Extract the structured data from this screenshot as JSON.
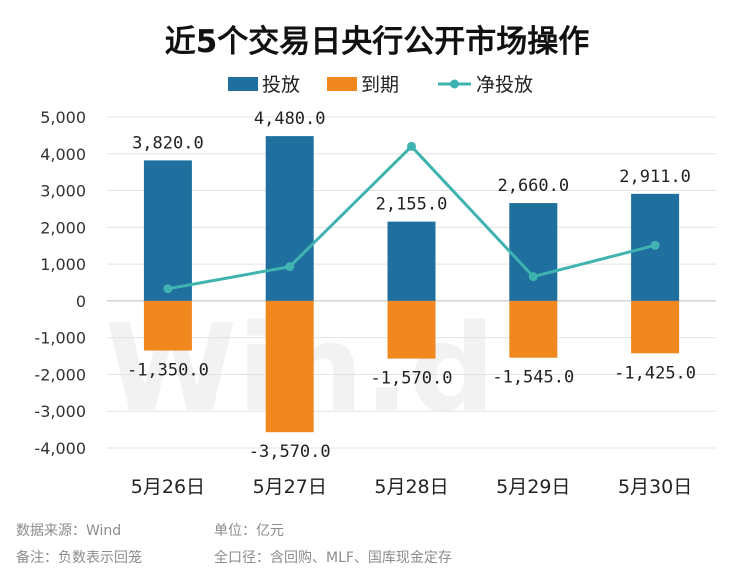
{
  "chart_data": {
    "type": "bar",
    "title": "近5个交易日央行公开市场操作",
    "categories": [
      "5月26日",
      "5月27日",
      "5月28日",
      "5月29日",
      "5月30日"
    ],
    "series": [
      {
        "name": "投放",
        "type": "bar",
        "color": "#1f6f9f",
        "values": [
          3820.0,
          4480.0,
          2155.0,
          2660.0,
          2911.0
        ]
      },
      {
        "name": "到期",
        "type": "bar",
        "color": "#f0871f",
        "values": [
          -1350.0,
          -3570.0,
          -1570.0,
          -1545.0,
          -1425.0
        ]
      },
      {
        "name": "净投放",
        "type": "line",
        "color": "#3fb3b0",
        "values": [
          330,
          930,
          4200,
          660,
          1510
        ]
      }
    ],
    "bar_labels": {
      "投放": [
        "3,820.0",
        "4,480.0",
        "2,155.0",
        "2,660.0",
        "2,911.0"
      ],
      "到期": [
        "-1,350.0",
        "-3,570.0",
        "-1,570.0",
        "-1,545.0",
        "-1,425.0"
      ]
    },
    "yaxis": {
      "ylim": [
        -4000,
        5000
      ],
      "ticks": [
        5000,
        4000,
        3000,
        2000,
        1000,
        0,
        -1000,
        -2000,
        -3000,
        -4000
      ],
      "tick_labels": [
        "5,000",
        "4,000",
        "3,000",
        "2,000",
        "1,000",
        "0",
        "-1,000",
        "-2,000",
        "-3,000",
        "-4,000"
      ]
    },
    "grid": true,
    "legend": "top-center",
    "watermark": "Win.d"
  },
  "footer": {
    "source": "数据来源：Wind",
    "unit": "单位：亿元",
    "note": "备注：负数表示回笼",
    "scope": "全口径：含回购、MLF、国库现金定存"
  }
}
